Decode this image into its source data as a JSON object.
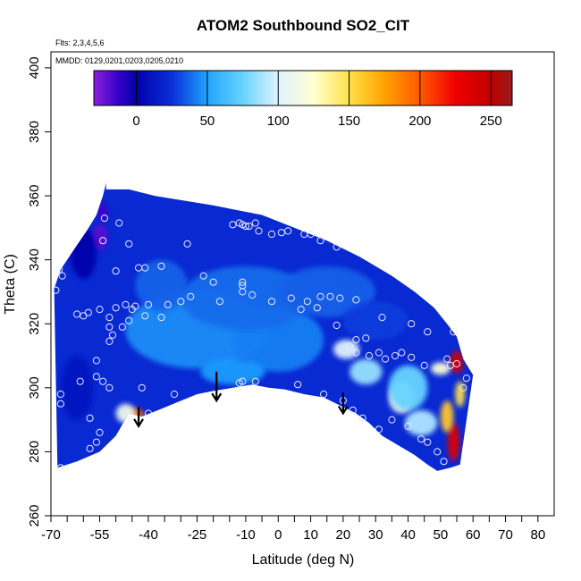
{
  "chart_data": {
    "type": "heatmap",
    "title": "ATOM2 Southbound SO2_CIT",
    "annotations": {
      "flights": "Flts: 2,3,4,5,6",
      "dates": "MMDD: 0129,0201,0203,0205,0210"
    },
    "xlabel": "Latitude (deg N)",
    "ylabel": "Theta (C)",
    "xlim": [
      -70,
      85
    ],
    "ylim": [
      260,
      405
    ],
    "x_ticks": [
      -70,
      -65,
      -60,
      -55,
      -50,
      -45,
      -40,
      -35,
      -30,
      -25,
      -20,
      -15,
      -10,
      -5,
      0,
      5,
      10,
      15,
      20,
      25,
      30,
      35,
      40,
      45,
      50,
      55,
      60,
      65,
      70,
      75,
      80
    ],
    "x_tick_labels": [
      "-70",
      "-55",
      "-40",
      "-25",
      "-10",
      "0",
      "10",
      "20",
      "30",
      "40",
      "50",
      "60",
      "70",
      "80"
    ],
    "x_tick_label_values": [
      -70,
      -55,
      -40,
      -25,
      -10,
      0,
      10,
      20,
      30,
      40,
      50,
      60,
      70,
      80
    ],
    "y_ticks": [
      260,
      280,
      300,
      320,
      340,
      360,
      380,
      400
    ],
    "y_tick_labels": [
      "260",
      "280",
      "300",
      "320",
      "340",
      "360",
      "380",
      "400"
    ],
    "colorbar": {
      "range": [
        -30,
        265
      ],
      "ticks": [
        0,
        50,
        100,
        150,
        200,
        250
      ],
      "tick_labels": [
        "0",
        "50",
        "100",
        "150",
        "200",
        "250"
      ],
      "stops": [
        {
          "value": -30,
          "color": "#8b1fd9"
        },
        {
          "value": -12,
          "color": "#3300c8"
        },
        {
          "value": 0,
          "color": "#0000aa"
        },
        {
          "value": 25,
          "color": "#0a2fd8"
        },
        {
          "value": 50,
          "color": "#1fa4ff"
        },
        {
          "value": 75,
          "color": "#68d3ff"
        },
        {
          "value": 100,
          "color": "#dff3ff"
        },
        {
          "value": 125,
          "color": "#ffffd0"
        },
        {
          "value": 150,
          "color": "#ffe24a"
        },
        {
          "value": 175,
          "color": "#ffa200"
        },
        {
          "value": 200,
          "color": "#ff5a00"
        },
        {
          "value": 225,
          "color": "#f00000"
        },
        {
          "value": 250,
          "color": "#c00000"
        },
        {
          "value": 265,
          "color": "#9a1a1a"
        }
      ]
    },
    "domain_bottom": [
      [
        -68,
        275
      ],
      [
        -62,
        277
      ],
      [
        -55,
        280
      ],
      [
        -50,
        285
      ],
      [
        -46,
        292
      ],
      [
        -42,
        291
      ],
      [
        -37,
        293
      ],
      [
        -31,
        295.5
      ],
      [
        -25,
        298
      ],
      [
        -20,
        299
      ],
      [
        -14,
        300
      ],
      [
        -8,
        301
      ],
      [
        -3,
        300
      ],
      [
        2,
        299.5
      ],
      [
        8,
        298
      ],
      [
        14,
        297
      ],
      [
        18,
        295
      ],
      [
        24,
        292
      ],
      [
        28,
        289
      ],
      [
        32,
        285
      ],
      [
        37,
        282
      ],
      [
        42,
        279
      ],
      [
        46,
        276
      ],
      [
        49,
        274
      ],
      [
        53,
        275
      ],
      [
        56,
        276
      ],
      [
        57,
        283
      ]
    ],
    "domain_top": [
      [
        -69,
        331
      ],
      [
        -67,
        337
      ],
      [
        -63,
        343
      ],
      [
        -59,
        349
      ],
      [
        -56,
        354
      ],
      [
        -54,
        360
      ],
      [
        -53,
        364
      ],
      [
        -53,
        362
      ],
      [
        -46,
        362
      ],
      [
        -38,
        360
      ],
      [
        -20,
        357
      ],
      [
        -5,
        354
      ],
      [
        5,
        350
      ],
      [
        15,
        346
      ],
      [
        25,
        341
      ],
      [
        35,
        335
      ],
      [
        42,
        330
      ],
      [
        48,
        325
      ],
      [
        52,
        320
      ],
      [
        55,
        316
      ],
      [
        57,
        309
      ],
      [
        60,
        304
      ]
    ],
    "background_value": 22,
    "blobs": [
      {
        "x": 55,
        "y": 308,
        "value": 240,
        "rx": 2,
        "ry": 3.5
      },
      {
        "x": 50,
        "y": 306,
        "value": 120,
        "rx": 3,
        "ry": 2
      },
      {
        "x": 54,
        "y": 283,
        "value": 235,
        "rx": 1.8,
        "ry": 6
      },
      {
        "x": 52,
        "y": 291,
        "value": 160,
        "rx": 2,
        "ry": 5
      },
      {
        "x": 56,
        "y": 298,
        "value": 150,
        "rx": 1.5,
        "ry": 4
      },
      {
        "x": -44,
        "y": 291,
        "value": 200,
        "rx": 2.8,
        "ry": 2.5
      },
      {
        "x": -47,
        "y": 292,
        "value": 110,
        "rx": 3,
        "ry": 3
      },
      {
        "x": -55,
        "y": 347,
        "value": -20,
        "rx": 2.5,
        "ry": 4
      },
      {
        "x": -54,
        "y": 355,
        "value": -15,
        "rx": 1.5,
        "ry": 3
      },
      {
        "x": -60,
        "y": 342,
        "value": 0,
        "rx": 4,
        "ry": 8
      },
      {
        "x": 21,
        "y": 312,
        "value": 100,
        "rx": 4,
        "ry": 3
      },
      {
        "x": 27,
        "y": 305,
        "value": 85,
        "rx": 5,
        "ry": 4
      },
      {
        "x": 38,
        "y": 297,
        "value": 110,
        "rx": 4,
        "ry": 5
      },
      {
        "x": 44,
        "y": 289,
        "value": 90,
        "rx": 5,
        "ry": 4
      },
      {
        "x": 40,
        "y": 300,
        "value": 75,
        "rx": 6,
        "ry": 7
      },
      {
        "x": -25,
        "y": 318,
        "value": 45,
        "rx": 22,
        "ry": 12
      },
      {
        "x": 0,
        "y": 315,
        "value": 42,
        "rx": 14,
        "ry": 10
      },
      {
        "x": -10,
        "y": 328,
        "value": 38,
        "rx": 20,
        "ry": 10
      },
      {
        "x": 15,
        "y": 330,
        "value": 35,
        "rx": 15,
        "ry": 8
      },
      {
        "x": -36,
        "y": 332,
        "value": 36,
        "rx": 8,
        "ry": 8
      },
      {
        "x": -14,
        "y": 305,
        "value": 48,
        "rx": 10,
        "ry": 4
      },
      {
        "x": -62,
        "y": 300,
        "value": 12,
        "rx": 5,
        "ry": 10
      },
      {
        "x": 30,
        "y": 321,
        "value": 28,
        "rx": 10,
        "ry": 6
      }
    ],
    "sample_points": [
      [
        -53.5,
        353
      ],
      [
        -49,
        351.5
      ],
      [
        -54,
        346
      ],
      [
        -46,
        345
      ],
      [
        -28,
        345
      ],
      [
        -14,
        351
      ],
      [
        -12,
        351.5
      ],
      [
        -11,
        351
      ],
      [
        -10,
        350.5
      ],
      [
        -9,
        350.5
      ],
      [
        -7,
        351.5
      ],
      [
        -6,
        349
      ],
      [
        -2,
        348
      ],
      [
        1,
        348.5
      ],
      [
        3,
        349
      ],
      [
        8,
        348
      ],
      [
        10,
        348
      ],
      [
        13,
        346
      ],
      [
        18,
        344
      ],
      [
        -67.5,
        337
      ],
      [
        -66.5,
        335
      ],
      [
        -50,
        336.5
      ],
      [
        -43,
        337.5
      ],
      [
        -41,
        337.5
      ],
      [
        -36,
        338
      ],
      [
        -23,
        335
      ],
      [
        -20,
        333
      ],
      [
        -11,
        333
      ],
      [
        -11,
        332
      ],
      [
        -11,
        330
      ],
      [
        -8,
        329
      ],
      [
        -2,
        327
      ],
      [
        4,
        328
      ],
      [
        9,
        327
      ],
      [
        13,
        328.5
      ],
      [
        16,
        328.5
      ],
      [
        19,
        328
      ],
      [
        24,
        327.5
      ],
      [
        -68.5,
        330.5
      ],
      [
        -62,
        323
      ],
      [
        -60,
        322.5
      ],
      [
        -58.5,
        323.5
      ],
      [
        -55,
        324.5
      ],
      [
        -52,
        322
      ],
      [
        -50,
        325
      ],
      [
        -47,
        326
      ],
      [
        -44,
        325.5
      ],
      [
        -45,
        324.5
      ],
      [
        -41,
        322.5
      ],
      [
        -40,
        326
      ],
      [
        -34,
        326
      ],
      [
        -30,
        327
      ],
      [
        -27,
        328.5
      ],
      [
        -18,
        327
      ],
      [
        7,
        324.5
      ],
      [
        12,
        325
      ],
      [
        18,
        319.5
      ],
      [
        32,
        322
      ],
      [
        41,
        320
      ],
      [
        46,
        317.5
      ],
      [
        54,
        317.5
      ],
      [
        -52,
        319
      ],
      [
        -48,
        319
      ],
      [
        -51,
        316.5
      ],
      [
        -52,
        314.5
      ],
      [
        -46,
        321
      ],
      [
        -36,
        322
      ],
      [
        24,
        315
      ],
      [
        27,
        315.5
      ],
      [
        22,
        313
      ],
      [
        24,
        311
      ],
      [
        28,
        310
      ],
      [
        31,
        311
      ],
      [
        33,
        309
      ],
      [
        36,
        310
      ],
      [
        38,
        311
      ],
      [
        41,
        309.5
      ],
      [
        45,
        307
      ],
      [
        52,
        309
      ],
      [
        53,
        307
      ],
      [
        55,
        307.5
      ],
      [
        58,
        303
      ],
      [
        57,
        300
      ],
      [
        -56,
        308.5
      ],
      [
        -54,
        302
      ],
      [
        -56,
        303.5
      ],
      [
        -61,
        302
      ],
      [
        -52,
        300
      ],
      [
        -42,
        300
      ],
      [
        -32,
        298
      ],
      [
        -12,
        301.5
      ],
      [
        -11,
        302
      ],
      [
        -7,
        302
      ],
      [
        6,
        301
      ],
      [
        14,
        298
      ],
      [
        20,
        296
      ],
      [
        23,
        293
      ],
      [
        26,
        290.5
      ],
      [
        31,
        287
      ],
      [
        35,
        290
      ],
      [
        40,
        288
      ],
      [
        44,
        284
      ],
      [
        46,
        283
      ],
      [
        49,
        280
      ],
      [
        51,
        277
      ],
      [
        -67,
        298
      ],
      [
        -67,
        295
      ],
      [
        -58,
        290.5
      ],
      [
        -55,
        286
      ],
      [
        -56,
        283
      ],
      [
        -58,
        281
      ],
      [
        -40,
        292
      ],
      [
        -67,
        275
      ]
    ],
    "arrows": [
      {
        "x": -43,
        "y_top": 294,
        "y_bottom": 288
      },
      {
        "x": -19,
        "y_top": 305,
        "y_bottom": 296
      },
      {
        "x": 20,
        "y_top": 298.5,
        "y_bottom": 292
      }
    ]
  }
}
